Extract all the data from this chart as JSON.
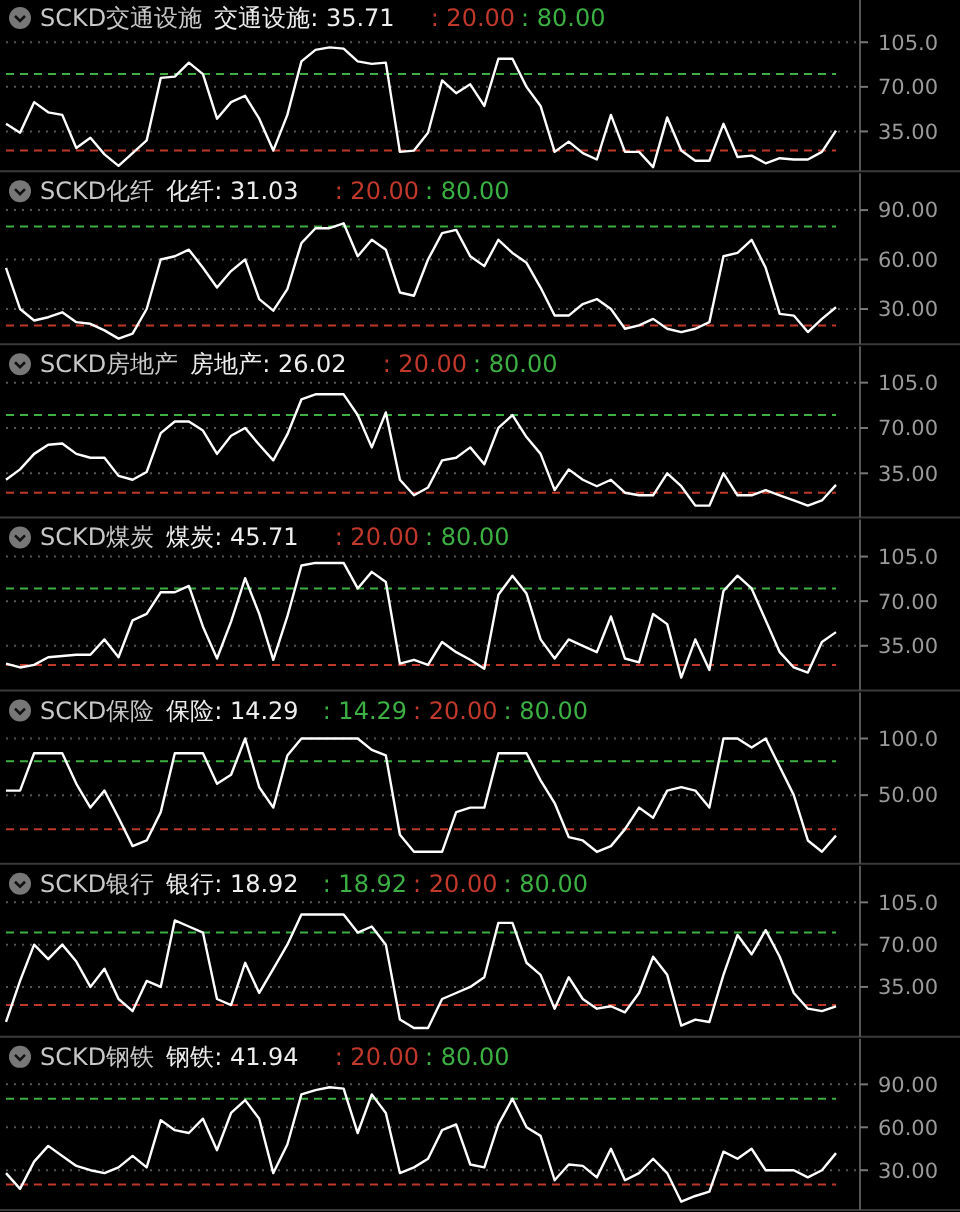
{
  "chart_data": [
    {
      "type": "line",
      "title": "SCKD交通设施",
      "categories": [
        null,
        null,
        null,
        null,
        null,
        null,
        null,
        null,
        null,
        null,
        null,
        null,
        null,
        null,
        null,
        null,
        null,
        null,
        null,
        null,
        null,
        null,
        null,
        null,
        null,
        null,
        null,
        null,
        null,
        null,
        null,
        null,
        null,
        null,
        null,
        null,
        null,
        null,
        null,
        null,
        null,
        null,
        null,
        null,
        null,
        null,
        null,
        null,
        null,
        null,
        null,
        null,
        null,
        null,
        null,
        null,
        null,
        null,
        null,
        null
      ],
      "tick_labels": "y",
      "grid": "y",
      "ylim": [
        7,
        135
      ],
      "yticks": [
        {
          "value": 105,
          "label": "105.0"
        },
        {
          "value": 70,
          "label": "70.00"
        },
        {
          "value": 35,
          "label": "35.00"
        }
      ],
      "series": [
        {
          "name": "交通设施: 35.71",
          "color": "#ffffff",
          "values": [
            41,
            34,
            58,
            50,
            48,
            22,
            30,
            17,
            8,
            18,
            28,
            77,
            78,
            89,
            80,
            45,
            58,
            63,
            45,
            20,
            48,
            90,
            99,
            101,
            100,
            90,
            88,
            89,
            19,
            20,
            34,
            75,
            65,
            72,
            55,
            92,
            92,
            70,
            55,
            19,
            27,
            18,
            13,
            48,
            19,
            19,
            7,
            46,
            20,
            12,
            12,
            41,
            15,
            16,
            10,
            14,
            13,
            13,
            19,
            35.71
          ]
        }
      ],
      "ref_lines": [
        {
          "axis": "y",
          "value": 20,
          "label": ": 20.00",
          "color": "#c0392b",
          "line_style": "dashed"
        },
        {
          "axis": "y",
          "value": 80,
          "label": ": 80.00",
          "color": "#3cb043",
          "line_style": "dashed"
        }
      ]
    },
    {
      "type": "line",
      "title": "SCKD化纤",
      "categories": [
        null,
        null,
        null,
        null,
        null,
        null,
        null,
        null,
        null,
        null,
        null,
        null,
        null,
        null,
        null,
        null,
        null,
        null,
        null,
        null,
        null,
        null,
        null,
        null,
        null,
        null,
        null,
        null,
        null,
        null,
        null,
        null,
        null,
        null,
        null,
        null,
        null,
        null,
        null,
        null,
        null,
        null,
        null,
        null,
        null,
        null,
        null,
        null,
        null,
        null,
        null,
        null,
        null,
        null,
        null,
        null,
        null,
        null,
        null,
        null
      ],
      "tick_labels": "y",
      "grid": "y",
      "ylim": [
        11,
        110
      ],
      "yticks": [
        {
          "value": 90,
          "label": "90.00"
        },
        {
          "value": 60,
          "label": "60.00"
        },
        {
          "value": 30,
          "label": "30.00"
        }
      ],
      "series": [
        {
          "name": "化纤: 31.03",
          "color": "#ffffff",
          "values": [
            55,
            30,
            23,
            25,
            28,
            22,
            21,
            17,
            12,
            15,
            30,
            60,
            62,
            66,
            55,
            43,
            53,
            60,
            36,
            29,
            42,
            70,
            79,
            79,
            82,
            62,
            72,
            66,
            40,
            38,
            60,
            76,
            78,
            62,
            56,
            72,
            64,
            58,
            43,
            26,
            26,
            33,
            36,
            30,
            18,
            20,
            24,
            18,
            16,
            18,
            22,
            62,
            64,
            72,
            55,
            27,
            26,
            16,
            24,
            31.03
          ]
        }
      ],
      "ref_lines": [
        {
          "axis": "y",
          "value": 20,
          "label": ": 20.00",
          "color": "#c0392b",
          "line_style": "dashed"
        },
        {
          "axis": "y",
          "value": 80,
          "label": ": 80.00",
          "color": "#3cb043",
          "line_style": "dashed"
        }
      ]
    },
    {
      "type": "line",
      "title": "SCKD房地产",
      "categories": [
        null,
        null,
        null,
        null,
        null,
        null,
        null,
        null,
        null,
        null,
        null,
        null,
        null,
        null,
        null,
        null,
        null,
        null,
        null,
        null,
        null,
        null,
        null,
        null,
        null,
        null,
        null,
        null,
        null,
        null,
        null,
        null,
        null,
        null,
        null,
        null,
        null,
        null,
        null,
        null,
        null,
        null,
        null,
        null,
        null,
        null,
        null,
        null,
        null,
        null,
        null,
        null,
        null,
        null,
        null,
        null,
        null,
        null,
        null,
        null
      ],
      "tick_labels": "y",
      "grid": "y",
      "ylim": [
        4,
        130
      ],
      "yticks": [
        {
          "value": 105,
          "label": "105.0"
        },
        {
          "value": 70,
          "label": "70.00"
        },
        {
          "value": 35,
          "label": "35.00"
        }
      ],
      "series": [
        {
          "name": "房地产: 26.02",
          "color": "#ffffff",
          "values": [
            30,
            38,
            50,
            57,
            58,
            50,
            47,
            47,
            33,
            30,
            36,
            66,
            75,
            75,
            68,
            50,
            64,
            70,
            57,
            45,
            65,
            92,
            96,
            96,
            96,
            80,
            55,
            82,
            30,
            18,
            24,
            45,
            47,
            55,
            42,
            70,
            80,
            63,
            50,
            22,
            38,
            30,
            25,
            30,
            20,
            18,
            18,
            35,
            25,
            10,
            10,
            35,
            18,
            18,
            22,
            18,
            14,
            10,
            14,
            26.02
          ]
        }
      ],
      "ref_lines": [
        {
          "axis": "y",
          "value": 20,
          "label": ": 20.00",
          "color": "#c0392b",
          "line_style": "dashed"
        },
        {
          "axis": "y",
          "value": 80,
          "label": ": 80.00",
          "color": "#3cb043",
          "line_style": "dashed"
        }
      ]
    },
    {
      "type": "line",
      "title": "SCKD煤炭",
      "categories": [
        null,
        null,
        null,
        null,
        null,
        null,
        null,
        null,
        null,
        null,
        null,
        null,
        null,
        null,
        null,
        null,
        null,
        null,
        null,
        null,
        null,
        null,
        null,
        null,
        null,
        null,
        null,
        null,
        null,
        null,
        null,
        null,
        null,
        null,
        null,
        null,
        null,
        null,
        null,
        null,
        null,
        null,
        null,
        null,
        null,
        null,
        null,
        null,
        null,
        null,
        null,
        null,
        null,
        null,
        null,
        null,
        null,
        null,
        null,
        null
      ],
      "tick_labels": "y",
      "grid": "y",
      "ylim": [
        3,
        131
      ],
      "yticks": [
        {
          "value": 105,
          "label": "105.0"
        },
        {
          "value": 70,
          "label": "70.00"
        },
        {
          "value": 35,
          "label": "35.00"
        }
      ],
      "series": [
        {
          "name": "煤炭: 45.71",
          "color": "#ffffff",
          "values": [
            21,
            18,
            20,
            26,
            27,
            28,
            28,
            40,
            26,
            55,
            60,
            77,
            77,
            82,
            50,
            25,
            54,
            88,
            60,
            24,
            58,
            98,
            100,
            100,
            100,
            80,
            93,
            85,
            21,
            24,
            20,
            38,
            30,
            24,
            17,
            75,
            90,
            76,
            40,
            25,
            40,
            35,
            30,
            58,
            25,
            22,
            60,
            52,
            10,
            40,
            16,
            78,
            90,
            80,
            55,
            30,
            18,
            14,
            38,
            45.71
          ]
        }
      ],
      "ref_lines": [
        {
          "axis": "y",
          "value": 20,
          "label": ": 20.00",
          "color": "#c0392b",
          "line_style": "dashed"
        },
        {
          "axis": "y",
          "value": 80,
          "label": ": 80.00",
          "color": "#3cb043",
          "line_style": "dashed"
        }
      ]
    },
    {
      "type": "line",
      "title": "SCKD保险",
      "categories": [
        null,
        null,
        null,
        null,
        null,
        null,
        null,
        null,
        null,
        null,
        null,
        null,
        null,
        null,
        null,
        null,
        null,
        null,
        null,
        null,
        null,
        null,
        null,
        null,
        null,
        null,
        null,
        null,
        null,
        null,
        null,
        null,
        null,
        null,
        null,
        null,
        null,
        null,
        null,
        null,
        null,
        null,
        null,
        null,
        null,
        null,
        null,
        null,
        null,
        null,
        null,
        null,
        null,
        null,
        null,
        null,
        null,
        null,
        null,
        null
      ],
      "tick_labels": "y",
      "grid": "y",
      "ylim": [
        -7,
        137
      ],
      "yticks": [
        {
          "value": 100,
          "label": "100.0"
        },
        {
          "value": 50,
          "label": "50.00"
        }
      ],
      "annotations": [
        ": 14.29"
      ],
      "series": [
        {
          "name": "保险: 14.29",
          "color": "#ffffff",
          "values": [
            54,
            54,
            87,
            87,
            87,
            60,
            39,
            54,
            30,
            5,
            10,
            35,
            87,
            87,
            87,
            60,
            68,
            100,
            57,
            39,
            85,
            100,
            100,
            100,
            100,
            100,
            90,
            85,
            15,
            0,
            0,
            0,
            35,
            39,
            39,
            87,
            87,
            87,
            63,
            43,
            13,
            10,
            0,
            5,
            20,
            39,
            30,
            54,
            57,
            54,
            39,
            100,
            100,
            92,
            100,
            75,
            50,
            10,
            0,
            14.29
          ]
        }
      ],
      "ref_lines": [
        {
          "axis": "y",
          "value": 20,
          "label": ": 20.00",
          "color": "#c0392b",
          "line_style": "dashed"
        },
        {
          "axis": "y",
          "value": 80,
          "label": ": 80.00",
          "color": "#3cb043",
          "line_style": "dashed"
        }
      ]
    },
    {
      "type": "line",
      "title": "SCKD银行",
      "categories": [
        null,
        null,
        null,
        null,
        null,
        null,
        null,
        null,
        null,
        null,
        null,
        null,
        null,
        null,
        null,
        null,
        null,
        null,
        null,
        null,
        null,
        null,
        null,
        null,
        null,
        null,
        null,
        null,
        null,
        null,
        null,
        null,
        null,
        null,
        null,
        null,
        null,
        null,
        null,
        null,
        null,
        null,
        null,
        null,
        null,
        null,
        null,
        null,
        null,
        null,
        null,
        null,
        null,
        null,
        null,
        null,
        null,
        null,
        null,
        null
      ],
      "tick_labels": "y",
      "grid": "y",
      "ylim": [
        -3,
        132
      ],
      "yticks": [
        {
          "value": 105,
          "label": "105.0"
        },
        {
          "value": 70,
          "label": "70.00"
        },
        {
          "value": 35,
          "label": "35.00"
        }
      ],
      "annotations": [
        ": 18.92"
      ],
      "series": [
        {
          "name": "银行: 18.92",
          "color": "#ffffff",
          "values": [
            6,
            40,
            70,
            58,
            70,
            56,
            35,
            50,
            25,
            15,
            40,
            35,
            90,
            85,
            80,
            25,
            20,
            55,
            30,
            50,
            70,
            95,
            95,
            95,
            95,
            80,
            85,
            70,
            8,
            1,
            1,
            25,
            30,
            35,
            43,
            88,
            88,
            55,
            45,
            17,
            43,
            25,
            17,
            19,
            14,
            30,
            60,
            45,
            3,
            8,
            6,
            45,
            78,
            62,
            82,
            60,
            30,
            17,
            15,
            18.92
          ]
        }
      ],
      "ref_lines": [
        {
          "axis": "y",
          "value": 20,
          "label": ": 20.00",
          "color": "#c0392b",
          "line_style": "dashed"
        },
        {
          "axis": "y",
          "value": 80,
          "label": ": 80.00",
          "color": "#3cb043",
          "line_style": "dashed"
        }
      ]
    },
    {
      "type": "line",
      "title": "SCKD钢铁",
      "categories": [
        null,
        null,
        null,
        null,
        null,
        null,
        null,
        null,
        null,
        null,
        null,
        null,
        null,
        null,
        null,
        null,
        null,
        null,
        null,
        null,
        null,
        null,
        null,
        null,
        null,
        null,
        null,
        null,
        null,
        null,
        null,
        null,
        null,
        null,
        null,
        null,
        null,
        null,
        null,
        null,
        null,
        null,
        null,
        null,
        null,
        null,
        null,
        null,
        null,
        null,
        null,
        null,
        null,
        null,
        null,
        null,
        null,
        null,
        null,
        null
      ],
      "tick_labels": "y",
      "grid": "y",
      "ylim": [
        5,
        119
      ],
      "yticks": [
        {
          "value": 90,
          "label": "90.00"
        },
        {
          "value": 60,
          "label": "60.00"
        },
        {
          "value": 30,
          "label": "30.00"
        }
      ],
      "series": [
        {
          "name": "钢铁: 41.94",
          "color": "#ffffff",
          "values": [
            28,
            17,
            36,
            47,
            40,
            33,
            30,
            28,
            32,
            40,
            32,
            65,
            58,
            56,
            66,
            44,
            70,
            79,
            66,
            28,
            48,
            83,
            86,
            88,
            87,
            56,
            83,
            70,
            28,
            32,
            38,
            58,
            62,
            34,
            32,
            62,
            80,
            60,
            54,
            23,
            34,
            33,
            25,
            45,
            23,
            28,
            38,
            28,
            8,
            12,
            15,
            43,
            38,
            45,
            30,
            30,
            30,
            25,
            30,
            41.94
          ]
        }
      ],
      "ref_lines": [
        {
          "axis": "y",
          "value": 20,
          "label": ": 20.00",
          "color": "#c0392b",
          "line_style": "dashed"
        },
        {
          "axis": "y",
          "value": 80,
          "label": ": 80.00",
          "color": "#3cb043",
          "line_style": "dashed"
        }
      ]
    }
  ]
}
